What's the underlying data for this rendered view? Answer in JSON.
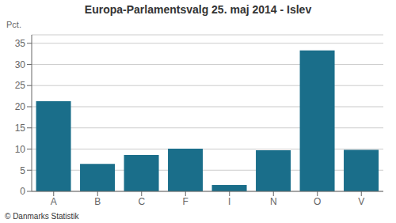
{
  "chart_data": {
    "type": "bar",
    "title": "Europa-Parlamentsvalg 25. maj 2014 - Islev",
    "y_label": "Pct.",
    "categories": [
      "A",
      "B",
      "C",
      "F",
      "I",
      "N",
      "O",
      "V"
    ],
    "values": [
      21.3,
      6.5,
      8.6,
      10.1,
      1.5,
      9.7,
      33.3,
      9.8
    ],
    "color": "#1a6e8a",
    "ylim": [
      0,
      37
    ],
    "yticks": [
      0,
      5,
      10,
      15,
      20,
      25,
      30,
      35
    ],
    "grid": true,
    "annotations": [
      "© Danmarks Statistik"
    ]
  }
}
